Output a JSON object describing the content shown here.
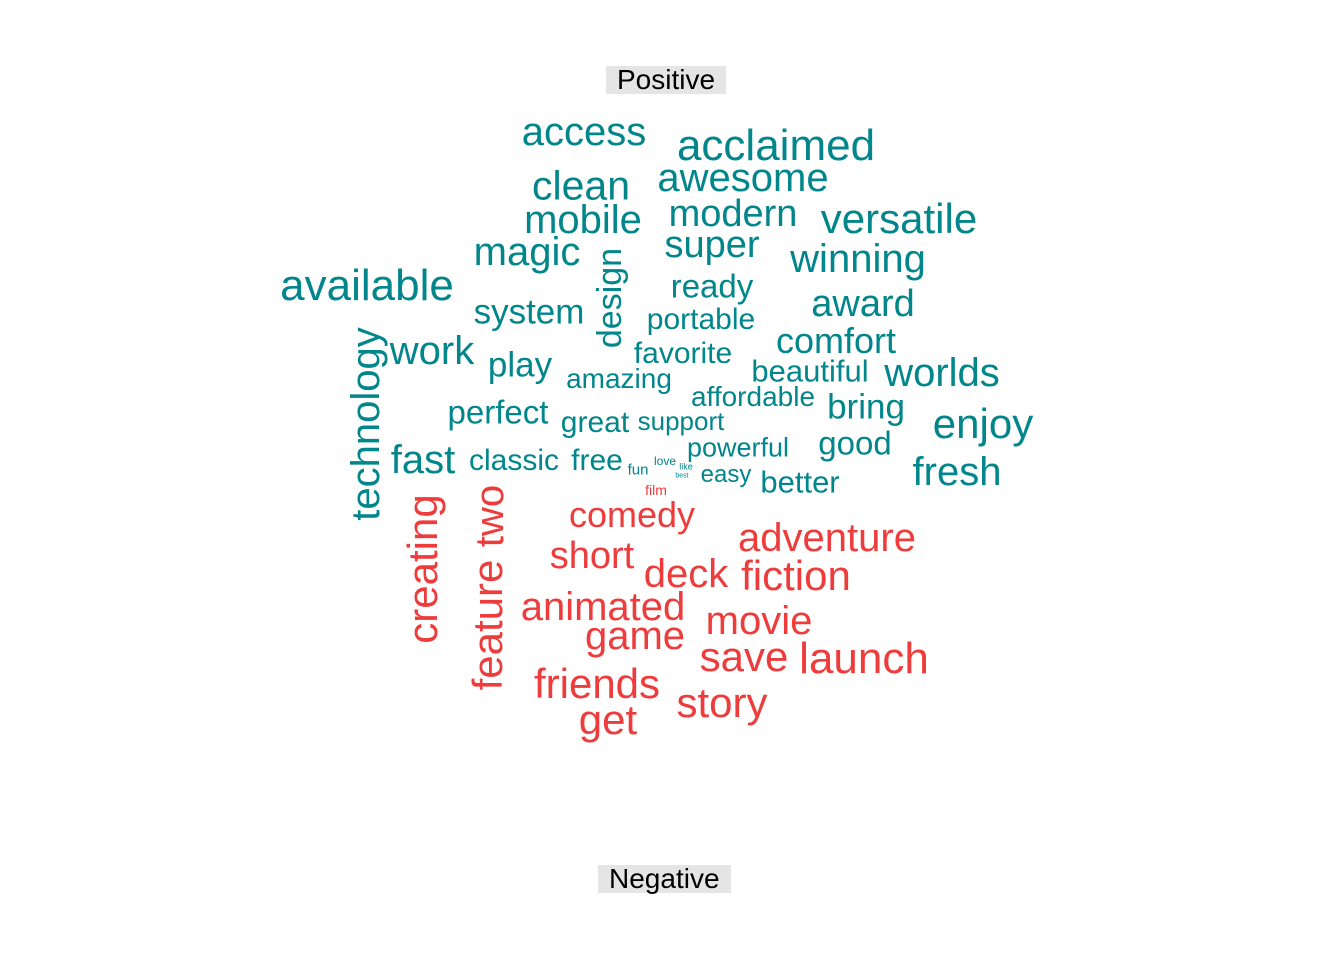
{
  "labels": {
    "positive": "Positive",
    "negative": "Negative"
  },
  "colors": {
    "positive": "#00868B",
    "negative": "#EE3B3B"
  },
  "positive_words": [
    "access",
    "acclaimed",
    "clean",
    "awesome",
    "mobile",
    "modern",
    "versatile",
    "magic",
    "super",
    "winning",
    "available",
    "design",
    "ready",
    "award",
    "system",
    "portable",
    "technology",
    "work",
    "comfort",
    "favorite",
    "play",
    "amazing",
    "beautiful",
    "worlds",
    "affordable",
    "bring",
    "perfect",
    "enjoy",
    "great",
    "support",
    "good",
    "fast",
    "classic",
    "free",
    "powerful",
    "fresh",
    "fun",
    "love",
    "like",
    "easy",
    "best",
    "better"
  ],
  "negative_words": [
    "film",
    "comedy",
    "creating",
    "two",
    "adventure",
    "short",
    "deck",
    "fiction",
    "feature",
    "animated",
    "movie",
    "game",
    "save",
    "launch",
    "friends",
    "story",
    "get"
  ]
}
